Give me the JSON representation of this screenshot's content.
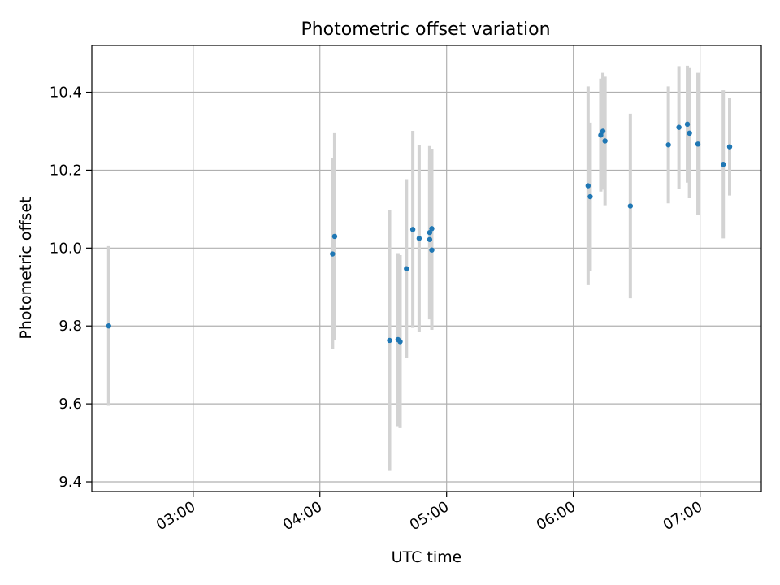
{
  "chart_data": {
    "type": "scatter",
    "title": "Photometric offset variation",
    "xlabel": "UTC time",
    "ylabel": "Photometric offset",
    "x_axis": {
      "unit": "UTC time (HH:MM)",
      "range": [
        "02:12",
        "07:29"
      ],
      "ticks": [
        "03:00",
        "04:00",
        "05:00",
        "06:00",
        "07:00"
      ]
    },
    "y_axis": {
      "range": [
        9.375,
        10.52
      ],
      "ticks": [
        9.4,
        9.6,
        9.8,
        10.0,
        10.2,
        10.4
      ],
      "tick_labels": [
        "9.4",
        "9.6",
        "9.8",
        "10.0",
        "10.2",
        "10.4"
      ]
    },
    "grid": true,
    "legend": "none",
    "marker_color": "#1f77b4",
    "errorbar_color": "#d3d3d3",
    "points": [
      {
        "t": "02:20",
        "y": 9.8,
        "yerr": 0.205
      },
      {
        "t": "04:06",
        "y": 9.985,
        "yerr": 0.245
      },
      {
        "t": "04:07",
        "y": 10.03,
        "yerr": 0.265
      },
      {
        "t": "04:33",
        "y": 9.763,
        "yerr": 0.335
      },
      {
        "t": "04:37",
        "y": 9.765,
        "yerr": 0.222
      },
      {
        "t": "04:38",
        "y": 9.76,
        "yerr": 0.222
      },
      {
        "t": "04:41",
        "y": 9.947,
        "yerr": 0.23
      },
      {
        "t": "04:44",
        "y": 10.048,
        "yerr": 0.253
      },
      {
        "t": "04:47",
        "y": 10.025,
        "yerr": 0.24
      },
      {
        "t": "04:52",
        "y": 10.04,
        "yerr": 0.222
      },
      {
        "t": "04:52",
        "y": 10.022,
        "yerr": 0.205
      },
      {
        "t": "04:53",
        "y": 10.05,
        "yerr": 0.205
      },
      {
        "t": "04:53",
        "y": 9.995,
        "yerr": 0.205
      },
      {
        "t": "06:07",
        "y": 10.16,
        "yerr": 0.255
      },
      {
        "t": "06:08",
        "y": 10.132,
        "yerr": 0.19
      },
      {
        "t": "06:13",
        "y": 10.29,
        "yerr": 0.145
      },
      {
        "t": "06:14",
        "y": 10.3,
        "yerr": 0.15
      },
      {
        "t": "06:15",
        "y": 10.275,
        "yerr": 0.165
      },
      {
        "t": "06:27",
        "y": 10.108,
        "yerr": 0.237
      },
      {
        "t": "06:45",
        "y": 10.265,
        "yerr": 0.15
      },
      {
        "t": "06:50",
        "y": 10.31,
        "yerr": 0.157
      },
      {
        "t": "06:54",
        "y": 10.318,
        "yerr": 0.15
      },
      {
        "t": "06:55",
        "y": 10.295,
        "yerr": 0.167
      },
      {
        "t": "06:59",
        "y": 10.267,
        "yerr": 0.183
      },
      {
        "t": "07:11",
        "y": 10.215,
        "yerr": 0.19
      },
      {
        "t": "07:14",
        "y": 10.26,
        "yerr": 0.125
      }
    ]
  }
}
